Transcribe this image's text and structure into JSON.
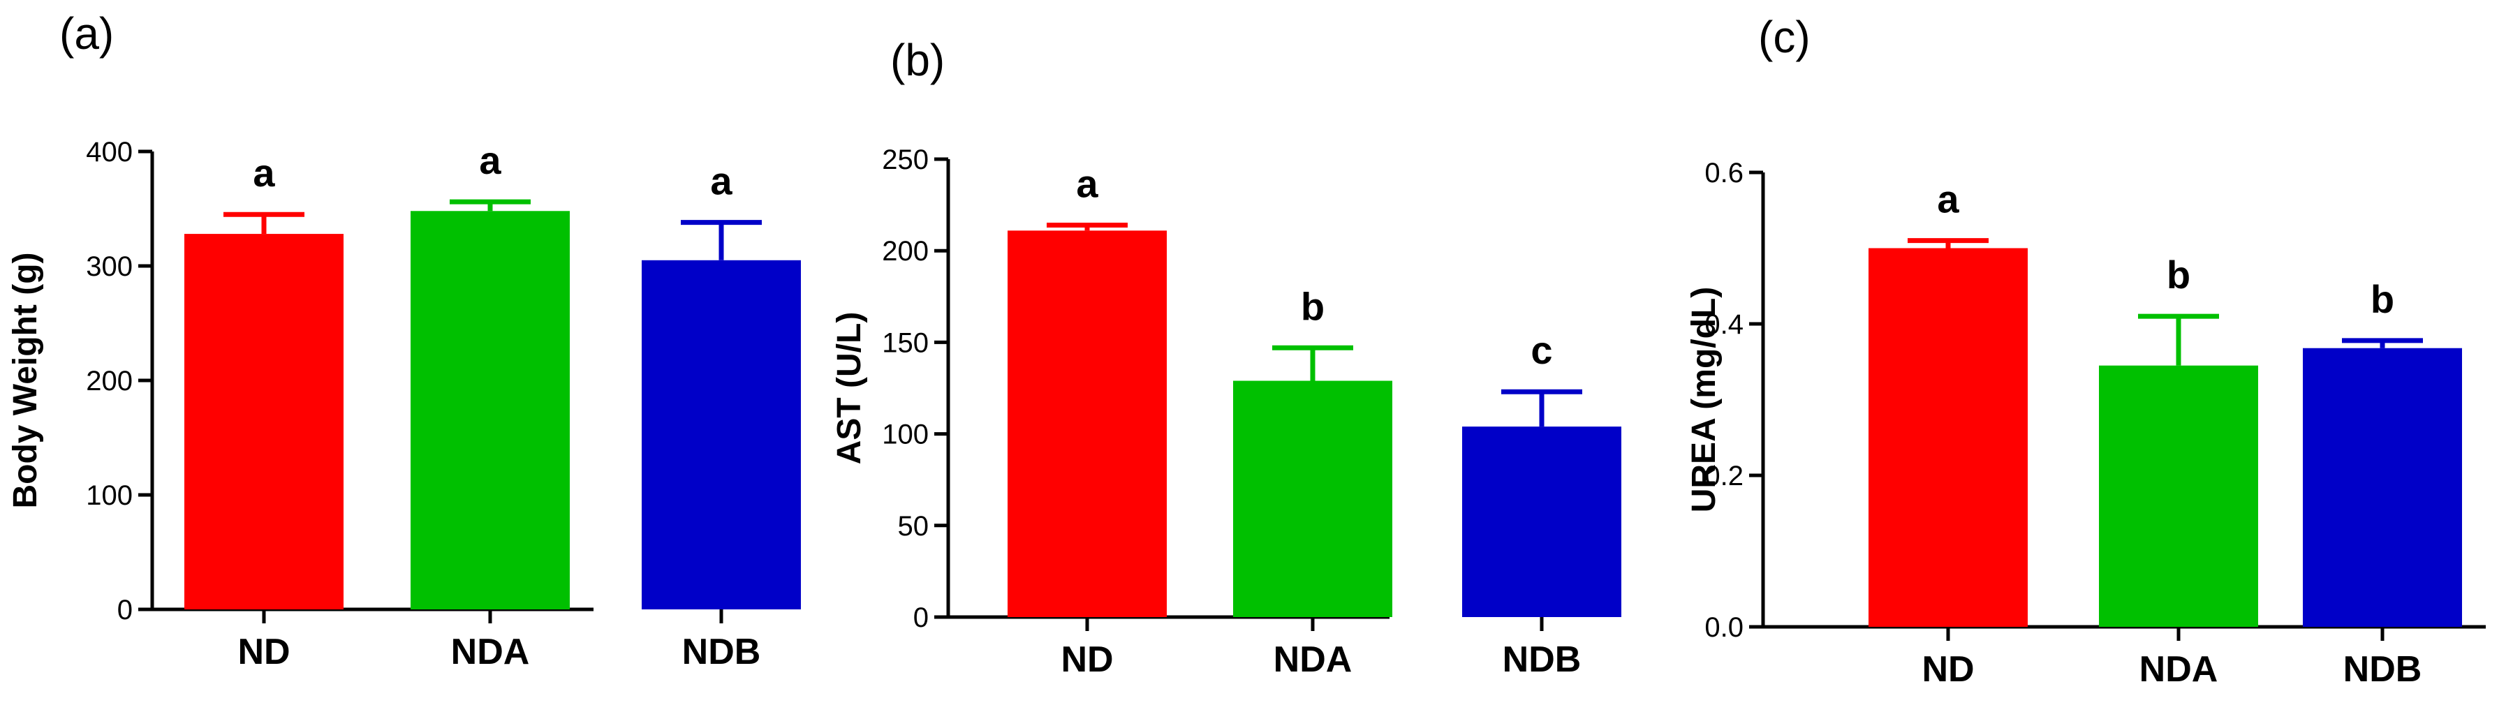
{
  "chart_data": [
    {
      "type": "bar",
      "panel_label": "(a)",
      "title": "",
      "xlabel": "",
      "ylabel": "Body Weight (g)",
      "ylim": [
        0,
        400
      ],
      "yticks": [
        0,
        100,
        200,
        300,
        400
      ],
      "ytick_labels": [
        "0",
        "100",
        "200",
        "300",
        "400"
      ],
      "categories": [
        "ND",
        "NDA",
        "NDB"
      ],
      "values": [
        328,
        348,
        305
      ],
      "errors": [
        17,
        8,
        33
      ],
      "significance": [
        "a",
        "a",
        "a"
      ],
      "colors": [
        "#ff0000",
        "#00c000",
        "#0000c8"
      ]
    },
    {
      "type": "bar",
      "panel_label": "(b)",
      "title": "",
      "xlabel": "",
      "ylabel": "AST (U/L)",
      "ylim": [
        0,
        250
      ],
      "yticks": [
        0,
        50,
        100,
        150,
        200,
        250
      ],
      "ytick_labels": [
        "0",
        "50",
        "100",
        "150",
        "200",
        "250"
      ],
      "categories": [
        "ND",
        "NDA",
        "NDB"
      ],
      "values": [
        211,
        129,
        104
      ],
      "errors": [
        3,
        18,
        19
      ],
      "significance": [
        "a",
        "b",
        "c"
      ],
      "colors": [
        "#ff0000",
        "#00c000",
        "#0000c8"
      ]
    },
    {
      "type": "bar",
      "panel_label": "(c)",
      "title": "",
      "xlabel": "",
      "ylabel": "UREA (mg/dL)",
      "ylim": [
        0,
        0.6
      ],
      "yticks": [
        0,
        0.2,
        0.4,
        0.6
      ],
      "ytick_labels": [
        "0.0",
        "0.2",
        "0.4",
        "0.6"
      ],
      "categories": [
        "ND",
        "NDA",
        "NDB"
      ],
      "values": [
        0.5,
        0.345,
        0.368
      ],
      "errors": [
        0.01,
        0.065,
        0.01
      ],
      "significance": [
        "a",
        "b",
        "b"
      ],
      "colors": [
        "#ff0000",
        "#00c000",
        "#0000c8"
      ]
    }
  ]
}
